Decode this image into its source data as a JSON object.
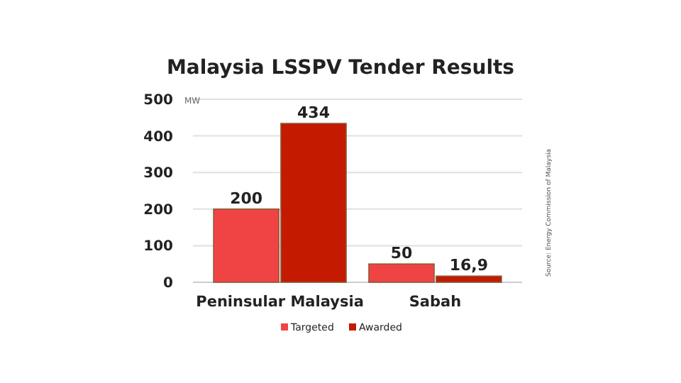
{
  "chart_data": {
    "type": "bar",
    "title": "Malaysia LSSPV Tender Results",
    "ylabel": "MW",
    "categories": [
      "Peninsular Malaysia",
      "Sabah"
    ],
    "series": [
      {
        "name": "Targeted",
        "color": "#f04444",
        "values": [
          200,
          50
        ],
        "value_labels": [
          "200",
          "50"
        ]
      },
      {
        "name": "Awarded",
        "color": "#c41a00",
        "values": [
          434,
          16.9
        ],
        "value_labels": [
          "434",
          "16,9"
        ]
      }
    ],
    "ylim": [
      0,
      500
    ],
    "yticks": [
      0,
      100,
      200,
      300,
      400,
      500
    ],
    "grid": "y",
    "legend": "bottom",
    "annotations": [
      "Source: Energy Commission of Malaysia"
    ]
  }
}
